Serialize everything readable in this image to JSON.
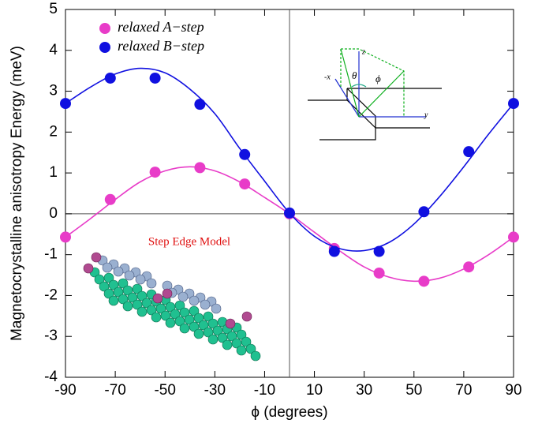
{
  "chart_data": {
    "type": "scatter",
    "x_label": "ϕ  (degrees)",
    "y_label": "Magnetocrystalline  anisotropy Energy  (meV)",
    "xlim": [
      -90,
      90
    ],
    "ylim": [
      -4,
      5
    ],
    "xticks": [
      -90,
      -70,
      -50,
      -30,
      -10,
      10,
      30,
      50,
      70,
      90
    ],
    "yticks": [
      -4,
      -3,
      -2,
      -1,
      0,
      1,
      2,
      3,
      4,
      5
    ],
    "series": [
      {
        "name": "relaxed A−step",
        "color": "#e83cc8",
        "x": [
          -90,
          -72,
          -54,
          -36,
          -18,
          0,
          18,
          36,
          54,
          72,
          90
        ],
        "values": [
          -0.57,
          0.35,
          1.02,
          1.13,
          0.73,
          0,
          -0.85,
          -1.45,
          -1.65,
          -1.3,
          -0.57
        ],
        "fit": {
          "x": [
            -90,
            -80,
            -70,
            -60,
            -50,
            -40,
            -30,
            -20,
            -10,
            0,
            10,
            20,
            30,
            40,
            50,
            60,
            70,
            80,
            90
          ],
          "values": [
            -0.57,
            -0.12,
            0.35,
            0.78,
            1.05,
            1.15,
            1.05,
            0.78,
            0.4,
            0,
            -0.45,
            -0.9,
            -1.3,
            -1.55,
            -1.65,
            -1.58,
            -1.35,
            -1.0,
            -0.57
          ]
        }
      },
      {
        "name": "relaxed B−step",
        "color": "#1010e0",
        "x": [
          -90,
          -72,
          -54,
          -36,
          -18,
          0,
          18,
          36,
          54,
          72,
          90
        ],
        "values": [
          2.7,
          3.32,
          3.32,
          2.68,
          1.45,
          0.02,
          -0.92,
          -0.92,
          0.05,
          1.52,
          2.7
        ],
        "fit": {
          "x": [
            -90,
            -80,
            -70,
            -60,
            -50,
            -40,
            -30,
            -20,
            -10,
            0,
            10,
            20,
            30,
            40,
            50,
            60,
            70,
            80,
            90
          ],
          "values": [
            2.7,
            3.1,
            3.42,
            3.56,
            3.45,
            3.05,
            2.45,
            1.6,
            0.8,
            0.02,
            -0.55,
            -0.85,
            -0.9,
            -0.7,
            -0.25,
            0.4,
            1.15,
            1.95,
            2.7
          ]
        }
      }
    ],
    "model_label": "Step Edge Model",
    "inset_labels": {
      "minus_x": "-x",
      "z": "z",
      "theta": "θ",
      "phi": "ϕ",
      "y": "y"
    }
  }
}
